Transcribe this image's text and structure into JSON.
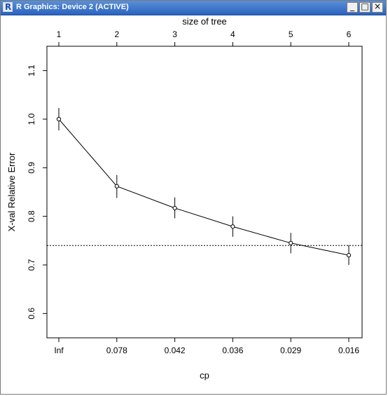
{
  "window": {
    "title": "R Graphics: Device 2 (ACTIVE)",
    "app_icon_letter": "R",
    "buttons": {
      "minimize": "_",
      "maximize": "□",
      "close": "×"
    }
  },
  "chart_data": {
    "type": "line",
    "top_axis_label": "size of tree",
    "xlabel": "cp",
    "ylabel": "X-val Relative Error",
    "ylim": [
      0.6,
      1.1
    ],
    "y_ticks": [
      "0.6",
      "0.7",
      "0.8",
      "0.9",
      "1.0",
      "1.1"
    ],
    "top_ticks": [
      "1",
      "2",
      "3",
      "4",
      "5",
      "6"
    ],
    "categories": [
      "Inf",
      "0.078",
      "0.042",
      "0.036",
      "0.029",
      "0.016"
    ],
    "values": [
      1.0,
      0.862,
      0.817,
      0.779,
      0.745,
      0.72
    ],
    "error_bars": [
      [
        0.977,
        1.023
      ],
      [
        0.838,
        0.885
      ],
      [
        0.796,
        0.839
      ],
      [
        0.758,
        0.8
      ],
      [
        0.724,
        0.766
      ],
      [
        0.7,
        0.741
      ]
    ],
    "reference_line": 0.74,
    "grid": false
  }
}
